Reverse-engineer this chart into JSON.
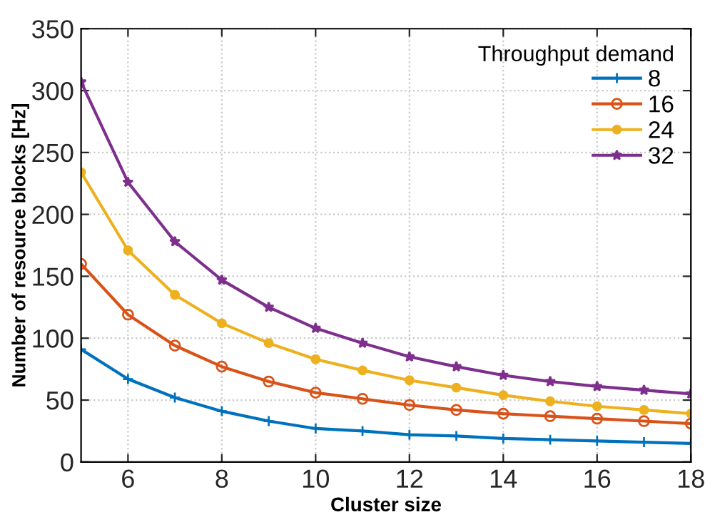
{
  "chart_data": {
    "type": "line",
    "xlabel": "Cluster size",
    "ylabel": "Number of resource blocks [Hz]",
    "legend_title": "Throughput demand",
    "x": [
      5,
      6,
      7,
      8,
      9,
      10,
      11,
      12,
      13,
      14,
      15,
      16,
      17,
      18
    ],
    "series": [
      {
        "name": "8",
        "color": "#0072bd",
        "marker": "cross",
        "values": [
          91,
          67,
          52,
          41,
          33,
          27,
          25,
          22,
          21,
          19,
          18,
          17,
          16,
          15
        ]
      },
      {
        "name": "16",
        "color": "#d95319",
        "marker": "circle",
        "values": [
          160,
          119,
          94,
          77,
          65,
          56,
          51,
          46,
          42,
          39,
          37,
          35,
          33,
          31
        ]
      },
      {
        "name": "24",
        "color": "#edb120",
        "marker": "circle",
        "values": [
          234,
          171,
          135,
          112,
          96,
          83,
          74,
          66,
          60,
          54,
          49,
          45,
          42,
          39
        ]
      },
      {
        "name": "32",
        "color": "#7e2f8e",
        "marker": "star",
        "values": [
          307,
          226,
          178,
          147,
          125,
          108,
          96,
          85,
          77,
          70,
          65,
          61,
          58,
          55
        ]
      }
    ],
    "xlim": [
      5,
      18
    ],
    "ylim": [
      0,
      350
    ],
    "xticks": [
      6,
      8,
      10,
      12,
      14,
      16,
      18
    ],
    "yticks": [
      0,
      50,
      100,
      150,
      200,
      250,
      300,
      350
    ],
    "grid": true,
    "legend": "top right",
    "line_style": "solid"
  }
}
